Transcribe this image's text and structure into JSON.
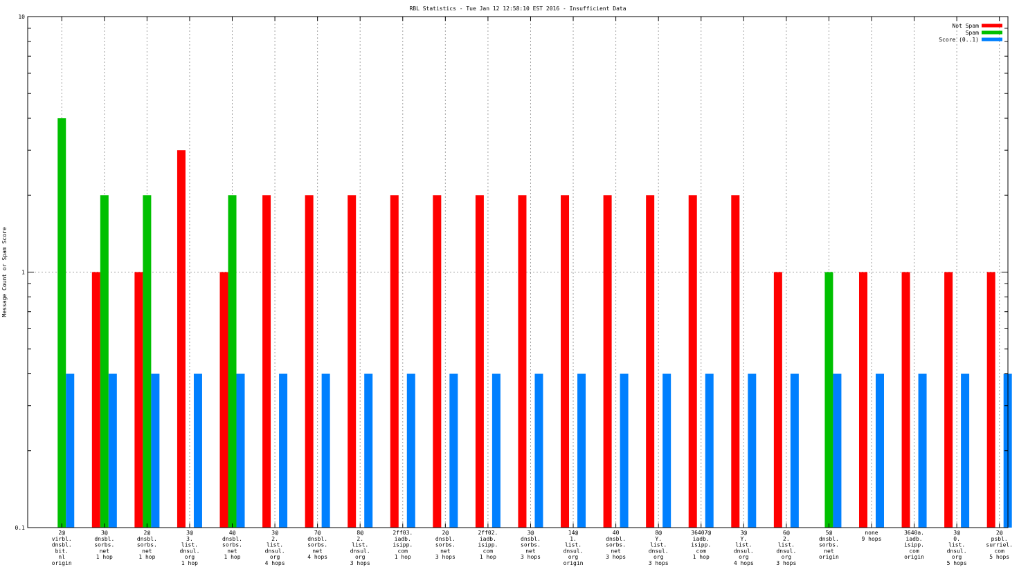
{
  "chart_data": {
    "type": "bar",
    "title": "RBL Statistics - Tue Jan 12 12:58:10 EST 2016 - Insufficient Data",
    "xlabel": "",
    "ylabel": "Message Count or Spam Score",
    "yscale": "log",
    "ylim": [
      0.1,
      10
    ],
    "yticks": [
      {
        "value": 0.1,
        "label": "0.1"
      },
      {
        "value": 1,
        "label": "1"
      },
      {
        "value": 10,
        "label": "10"
      }
    ],
    "grid": true,
    "legend_position": "top-right",
    "categories": [
      [
        "2@",
        "virbl.",
        "dnsbl.",
        "bit.",
        "nl",
        "origin"
      ],
      [
        "3@",
        "dnsbl.",
        "sorbs.",
        "net",
        "1 hop"
      ],
      [
        "2@",
        "dnsbl.",
        "sorbs.",
        "net",
        "1 hop"
      ],
      [
        "3@",
        "3.",
        "list.",
        "dnsul.",
        "org",
        "1 hop"
      ],
      [
        "4@",
        "dnsbl.",
        "sorbs.",
        "net",
        "1 hop"
      ],
      [
        "3@",
        "2.",
        "list.",
        "dnsul.",
        "org",
        "4 hops"
      ],
      [
        "7@",
        "dnsbl.",
        "sorbs.",
        "net",
        "4 hops"
      ],
      [
        "8@",
        "2.",
        "list.",
        "dnsul.",
        "org",
        "3 hops"
      ],
      [
        "2ff03.",
        "iadb.",
        "isipp.",
        "com",
        "1 hop"
      ],
      [
        "2@",
        "dnsbl.",
        "sorbs.",
        "net",
        "3 hops"
      ],
      [
        "2ff02.",
        "iadb.",
        "isipp.",
        "com",
        "1 hop"
      ],
      [
        "3@",
        "dnsbl.",
        "sorbs.",
        "net",
        "3 hops"
      ],
      [
        "14@",
        "1.",
        "list.",
        "dnsul.",
        "org",
        "origin"
      ],
      [
        "40",
        "dnsbl.",
        "sorbs.",
        "net",
        "3 hops"
      ],
      [
        "8@",
        "Y.",
        "list.",
        "dnsul.",
        "org",
        "3 hops"
      ],
      [
        "36407@",
        "iadb.",
        "isipp.",
        "com",
        "1 hop"
      ],
      [
        "3@",
        "Y.",
        "list.",
        "dnsul.",
        "org",
        "4 hops"
      ],
      [
        "6@",
        "2.",
        "list.",
        "dnsul.",
        "org",
        "3 hops"
      ],
      [
        "5@",
        "dnsbl.",
        "sorbs.",
        "net",
        "origin"
      ],
      [
        "none",
        "9 hops"
      ],
      [
        "3640a.",
        "iadb.",
        "isipp.",
        "com",
        "origin"
      ],
      [
        "3@",
        "0.",
        "list.",
        "dnsul.",
        "org",
        "5 hops"
      ],
      [
        "2@",
        "psbl.",
        "surriel.",
        "com",
        "5 hops"
      ]
    ],
    "series": [
      {
        "name": "Not Spam",
        "color": "#ff0000",
        "values": [
          null,
          1,
          1,
          3,
          1,
          2,
          2,
          2,
          2,
          2,
          2,
          2,
          2,
          2,
          2,
          2,
          2,
          1,
          null,
          1,
          1,
          1,
          1
        ]
      },
      {
        "name": "Spam",
        "color": "#00c000",
        "values": [
          4,
          2,
          2,
          null,
          2,
          null,
          null,
          null,
          null,
          null,
          null,
          null,
          null,
          null,
          null,
          null,
          null,
          null,
          1,
          null,
          null,
          null,
          null
        ]
      },
      {
        "name": "Score (0..1)",
        "color": "#0080ff",
        "values": [
          0.4,
          0.4,
          0.4,
          0.4,
          0.4,
          0.4,
          0.4,
          0.4,
          0.4,
          0.4,
          0.4,
          0.4,
          0.4,
          0.4,
          0.4,
          0.4,
          0.4,
          0.4,
          0.4,
          0.4,
          0.4,
          0.4,
          0.4
        ]
      }
    ]
  }
}
